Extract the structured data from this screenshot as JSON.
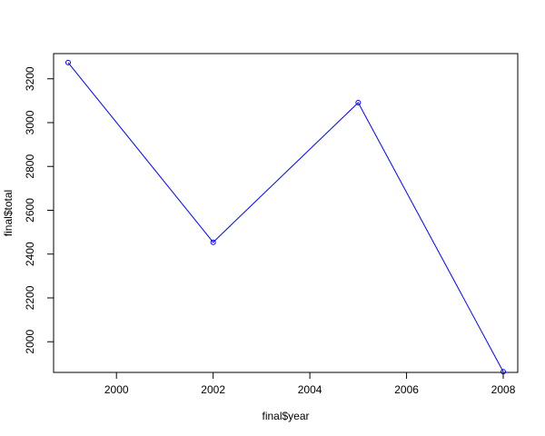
{
  "chart_data": {
    "type": "line",
    "title": "",
    "xlabel": "final$year",
    "ylabel": "final$total",
    "xlim": [
      1998.7,
      2008.3
    ],
    "ylim": [
      1860,
      3315
    ],
    "x_ticks": [
      2000,
      2002,
      2004,
      2006,
      2008
    ],
    "y_ticks": [
      2000,
      2200,
      2400,
      2600,
      2800,
      3000,
      3200
    ],
    "series": [
      {
        "color": "#0000ff",
        "marker": "open-circle",
        "x": [
          1999,
          2002,
          2005,
          2008
        ],
        "y": [
          3274,
          2454,
          3091,
          1863
        ]
      }
    ],
    "grid": false,
    "legend": "none"
  }
}
